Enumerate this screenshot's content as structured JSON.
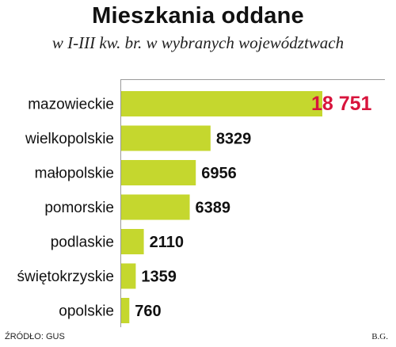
{
  "title": "Mieszkania oddane",
  "subtitle": "w I-III kw. br. w wybranych województwach",
  "source": "ŹRÓDŁO: GUS",
  "author": "B.G.",
  "colors": {
    "bar": "#c5d72e",
    "highlight_label": "#d8143c",
    "label": "#111111",
    "axis": "#9a9a9a"
  },
  "chart_data": {
    "type": "bar",
    "orientation": "horizontal",
    "title": "Mieszkania oddane",
    "subtitle": "w I-III kw. br. w wybranych województwach",
    "categories": [
      "mazowieckie",
      "wielkopolskie",
      "małopolskie",
      "pomorskie",
      "podlaskie",
      "świętokrzyskie",
      "opolskie"
    ],
    "values": [
      18751,
      8329,
      6956,
      6389,
      2110,
      1359,
      760
    ],
    "value_labels": [
      "18 751",
      "8329",
      "6956",
      "6389",
      "2110",
      "1359",
      "760"
    ],
    "highlight_index": 0,
    "xlim": [
      0,
      18751
    ],
    "grid": false,
    "legend": "none"
  }
}
